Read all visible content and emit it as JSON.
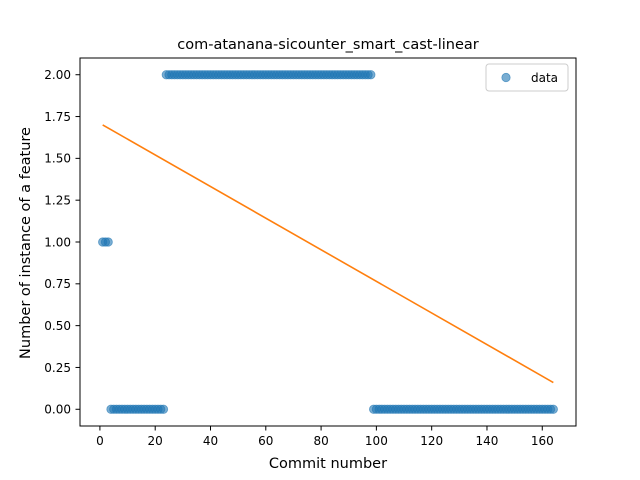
{
  "chart_data": {
    "type": "scatter",
    "title": "com-atanana-sicounter_smart_cast-linear",
    "xlabel": "Commit number",
    "ylabel": "Number of instance of a feature",
    "xlim": [
      -7.2,
      172.2
    ],
    "ylim": [
      -0.1,
      2.1
    ],
    "xticks": [
      0,
      20,
      40,
      60,
      80,
      100,
      120,
      140,
      160
    ],
    "yticks": [
      0.0,
      0.25,
      0.5,
      0.75,
      1.0,
      1.25,
      1.5,
      1.75,
      2.0
    ],
    "xtick_labels": [
      "0",
      "20",
      "40",
      "60",
      "80",
      "100",
      "120",
      "140",
      "160"
    ],
    "ytick_labels": [
      "0.00",
      "0.25",
      "0.50",
      "0.75",
      "1.00",
      "1.25",
      "1.50",
      "1.75",
      "2.00"
    ],
    "legend": {
      "position": "top-right",
      "entries": [
        "data"
      ]
    },
    "grid": false,
    "series": [
      {
        "name": "data",
        "kind": "scatter",
        "color": "#1f77b4",
        "segments": [
          {
            "x_start": 1,
            "x_end": 3,
            "y": 1
          },
          {
            "x_start": 4,
            "x_end": 23,
            "y": 0
          },
          {
            "x_start": 24,
            "x_end": 98,
            "y": 2
          },
          {
            "x_start": 99,
            "x_end": 164,
            "y": 0
          }
        ]
      },
      {
        "kind": "line",
        "color": "#ff7f0e",
        "points": [
          [
            1,
            1.7
          ],
          [
            164,
            0.16
          ]
        ]
      }
    ]
  }
}
